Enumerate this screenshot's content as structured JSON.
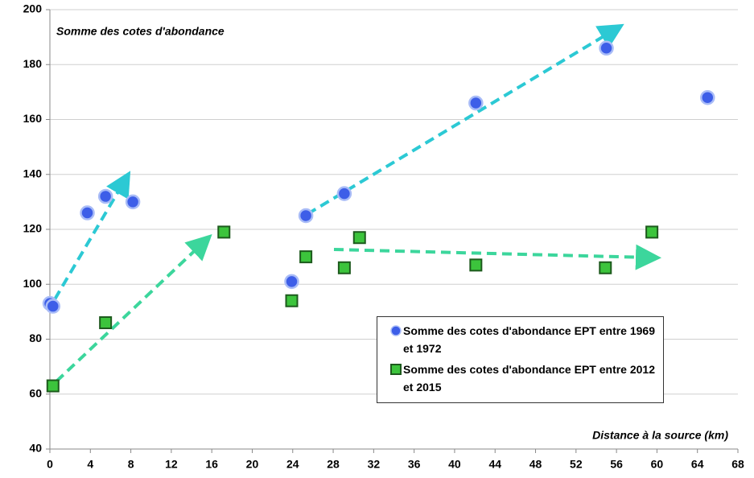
{
  "chart_data": {
    "type": "scatter",
    "ylabel": "Somme des cotes d'abondance",
    "xlabel": "Distance à la source (km)",
    "xlim": [
      0,
      68
    ],
    "xticks": [
      0,
      4,
      8,
      12,
      16,
      20,
      24,
      28,
      32,
      36,
      40,
      44,
      48,
      52,
      56,
      60,
      64,
      68
    ],
    "ylim": [
      40,
      200
    ],
    "yticks": [
      40,
      60,
      80,
      100,
      120,
      140,
      160,
      180,
      200
    ],
    "grid": true,
    "series": [
      {
        "name": "Somme des cotes d'abondance EPT entre 1969 et 1972",
        "color": "#3d5ee8",
        "marker": "circle",
        "x": [
          0,
          0.3,
          3.7,
          5.5,
          8.2,
          23.9,
          25.3,
          29.1,
          42.1,
          55.0,
          65.0
        ],
        "values": [
          93,
          92,
          126,
          132,
          130,
          101,
          125,
          133,
          166,
          186,
          168
        ]
      },
      {
        "name": "Somme des cotes d'abondance EPT entre 2012 et 2015",
        "color": "#3cc43c",
        "marker": "square",
        "x": [
          0.3,
          5.5,
          17.2,
          23.9,
          25.3,
          29.1,
          30.6,
          42.1,
          54.9,
          59.5
        ],
        "values": [
          63,
          86,
          119,
          94,
          110,
          106,
          117,
          107,
          106,
          119
        ]
      }
    ]
  }
}
